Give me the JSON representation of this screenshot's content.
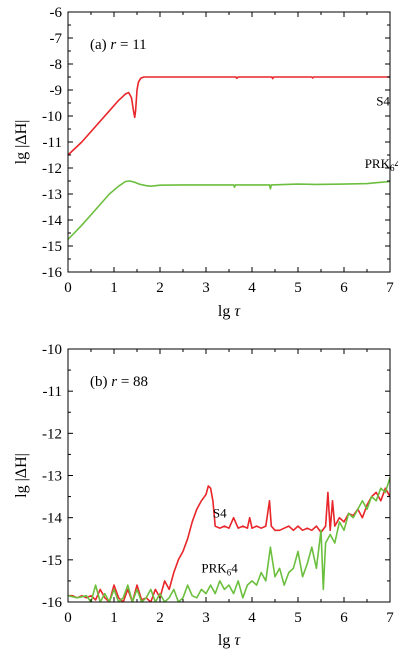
{
  "chart_data": [
    {
      "type": "line",
      "panel_label_prefix": "(a) ",
      "panel_label_var": "r",
      "panel_label_value": " = 11",
      "xlabel_prefix": "lg",
      "xlabel_var": "τ",
      "ylabel": "lg |ΔH|",
      "xlim": [
        0,
        7
      ],
      "ylim": [
        -16,
        -6
      ],
      "xticks": [
        0,
        1,
        2,
        3,
        4,
        5,
        6,
        7
      ],
      "yticks": [
        -16,
        -15,
        -14,
        -13,
        -12,
        -11,
        -10,
        -9,
        -8,
        -7,
        -6
      ],
      "grid": false,
      "series": [
        {
          "name": "S4",
          "color": "#e8262a",
          "x": [
            0,
            0.3,
            0.6,
            0.9,
            1.1,
            1.25,
            1.32,
            1.38,
            1.42,
            1.45,
            1.47,
            1.5,
            1.53,
            1.58,
            1.65,
            1.75,
            2.0,
            2.5,
            3.0,
            3.65,
            3.67,
            3.7,
            4.0,
            4.43,
            4.45,
            4.47,
            4.5,
            5.0,
            5.3,
            5.32,
            5.34,
            6.0,
            7.0
          ],
          "y": [
            -11.5,
            -11.0,
            -10.4,
            -9.8,
            -9.4,
            -9.15,
            -9.1,
            -9.3,
            -9.75,
            -10.05,
            -9.8,
            -9.0,
            -8.7,
            -8.55,
            -8.5,
            -8.5,
            -8.5,
            -8.5,
            -8.5,
            -8.5,
            -8.55,
            -8.5,
            -8.5,
            -8.5,
            -8.56,
            -8.5,
            -8.5,
            -8.5,
            -8.5,
            -8.54,
            -8.5,
            -8.5,
            -8.5
          ]
        },
        {
          "name": "PRK₆4",
          "color": "#6cbf3e",
          "x": [
            0,
            0.3,
            0.6,
            0.9,
            1.1,
            1.25,
            1.35,
            1.45,
            1.55,
            1.7,
            1.8,
            2.0,
            2.5,
            3.0,
            3.6,
            3.62,
            3.64,
            4.0,
            4.38,
            4.4,
            4.42,
            5.0,
            5.4,
            6.0,
            6.5,
            7.0
          ],
          "y": [
            -14.75,
            -14.2,
            -13.6,
            -13.0,
            -12.7,
            -12.52,
            -12.5,
            -12.55,
            -12.62,
            -12.68,
            -12.7,
            -12.66,
            -12.65,
            -12.65,
            -12.65,
            -12.74,
            -12.65,
            -12.65,
            -12.65,
            -12.8,
            -12.65,
            -12.62,
            -12.63,
            -12.62,
            -12.6,
            -12.52
          ]
        }
      ],
      "annotations": [
        {
          "text": "S4",
          "x": 6.7,
          "y": -9.6
        },
        {
          "text_main": "PRK",
          "text_sub": "6",
          "text_tail": "4",
          "x": 6.45,
          "y": -12.0
        }
      ]
    },
    {
      "type": "line",
      "panel_label_prefix": "(b) ",
      "panel_label_var": "r",
      "panel_label_value": " = 88",
      "xlabel_prefix": "lg",
      "xlabel_var": "τ",
      "ylabel": "lg |ΔH|",
      "xlim": [
        0,
        7
      ],
      "ylim": [
        -16,
        -10
      ],
      "xticks": [
        0,
        1,
        2,
        3,
        4,
        5,
        6,
        7
      ],
      "yticks": [
        -16,
        -15,
        -14,
        -13,
        -12,
        -11,
        -10
      ],
      "grid": false,
      "series": [
        {
          "name": "S4",
          "color": "#e8262a",
          "x": [
            0,
            0.1,
            0.2,
            0.3,
            0.4,
            0.5,
            0.6,
            0.7,
            0.8,
            0.9,
            1.0,
            1.1,
            1.2,
            1.3,
            1.4,
            1.5,
            1.6,
            1.7,
            1.8,
            1.9,
            2.0,
            2.1,
            2.2,
            2.3,
            2.4,
            2.5,
            2.6,
            2.7,
            2.8,
            2.9,
            3.0,
            3.05,
            3.1,
            3.15,
            3.2,
            3.3,
            3.4,
            3.5,
            3.6,
            3.7,
            3.8,
            3.9,
            3.95,
            4.0,
            4.1,
            4.2,
            4.3,
            4.38,
            4.42,
            4.5,
            4.6,
            4.7,
            4.8,
            4.9,
            5.0,
            5.1,
            5.2,
            5.3,
            5.4,
            5.5,
            5.6,
            5.65,
            5.7,
            5.75,
            5.8,
            5.9,
            6.0,
            6.1,
            6.2,
            6.3,
            6.4,
            6.5,
            6.6,
            6.7,
            6.8,
            6.9,
            7.0
          ],
          "y": [
            -15.85,
            -15.85,
            -15.9,
            -15.85,
            -15.9,
            -15.85,
            -15.95,
            -15.7,
            -15.9,
            -16.0,
            -15.6,
            -15.9,
            -16.0,
            -15.7,
            -16.0,
            -15.6,
            -15.95,
            -15.9,
            -16.0,
            -15.7,
            -15.9,
            -15.5,
            -15.7,
            -15.3,
            -15.0,
            -14.8,
            -14.5,
            -14.1,
            -13.8,
            -13.6,
            -13.45,
            -13.25,
            -13.3,
            -13.6,
            -14.2,
            -14.25,
            -14.2,
            -14.25,
            -14.0,
            -14.25,
            -14.2,
            -14.25,
            -14.0,
            -14.25,
            -14.2,
            -14.25,
            -14.2,
            -13.6,
            -14.2,
            -14.3,
            -14.3,
            -14.25,
            -14.2,
            -14.3,
            -14.2,
            -14.3,
            -14.25,
            -14.3,
            -14.2,
            -14.35,
            -14.2,
            -13.4,
            -14.3,
            -13.6,
            -14.2,
            -14.0,
            -14.1,
            -13.9,
            -13.95,
            -13.8,
            -14.0,
            -13.7,
            -13.5,
            -13.4,
            -13.6,
            -13.3,
            -13.5
          ]
        },
        {
          "name": "PRK₆4",
          "color": "#6cbf3e",
          "x": [
            0,
            0.2,
            0.4,
            0.5,
            0.6,
            0.7,
            0.8,
            0.9,
            1.0,
            1.1,
            1.2,
            1.3,
            1.4,
            1.5,
            1.6,
            1.7,
            1.8,
            1.9,
            2.0,
            2.1,
            2.2,
            2.3,
            2.4,
            2.5,
            2.6,
            2.7,
            2.8,
            2.9,
            3.0,
            3.1,
            3.2,
            3.3,
            3.4,
            3.5,
            3.6,
            3.7,
            3.8,
            3.9,
            4.0,
            4.1,
            4.2,
            4.3,
            4.4,
            4.5,
            4.6,
            4.7,
            4.8,
            4.9,
            5.0,
            5.1,
            5.2,
            5.3,
            5.4,
            5.5,
            5.55,
            5.6,
            5.7,
            5.8,
            5.9,
            6.0,
            6.1,
            6.2,
            6.3,
            6.4,
            6.5,
            6.6,
            6.7,
            6.8,
            6.9,
            7.0
          ],
          "y": [
            -15.85,
            -15.9,
            -15.85,
            -16.0,
            -15.6,
            -16.0,
            -15.8,
            -16.0,
            -15.7,
            -16.0,
            -15.9,
            -15.6,
            -16.0,
            -15.7,
            -16.0,
            -15.9,
            -15.7,
            -16.0,
            -15.8,
            -16.0,
            -15.9,
            -15.7,
            -16.0,
            -15.9,
            -15.6,
            -15.85,
            -15.9,
            -15.7,
            -15.8,
            -15.6,
            -15.8,
            -15.5,
            -15.7,
            -15.6,
            -15.8,
            -15.5,
            -15.9,
            -15.6,
            -15.5,
            -15.6,
            -15.3,
            -15.5,
            -14.7,
            -15.4,
            -15.2,
            -15.6,
            -15.3,
            -15.2,
            -14.8,
            -15.4,
            -15.1,
            -14.7,
            -15.2,
            -14.3,
            -15.7,
            -14.6,
            -14.4,
            -14.6,
            -14.1,
            -14.3,
            -13.9,
            -14.0,
            -13.8,
            -13.6,
            -13.8,
            -13.5,
            -13.6,
            -13.3,
            -13.4,
            -13.05
          ]
        }
      ],
      "annotations": [
        {
          "text": "S4",
          "x": 3.15,
          "y": -14.0
        },
        {
          "text_main": "PRK",
          "text_sub": "6",
          "text_tail": "4",
          "x": 2.9,
          "y": -15.3
        }
      ]
    }
  ]
}
